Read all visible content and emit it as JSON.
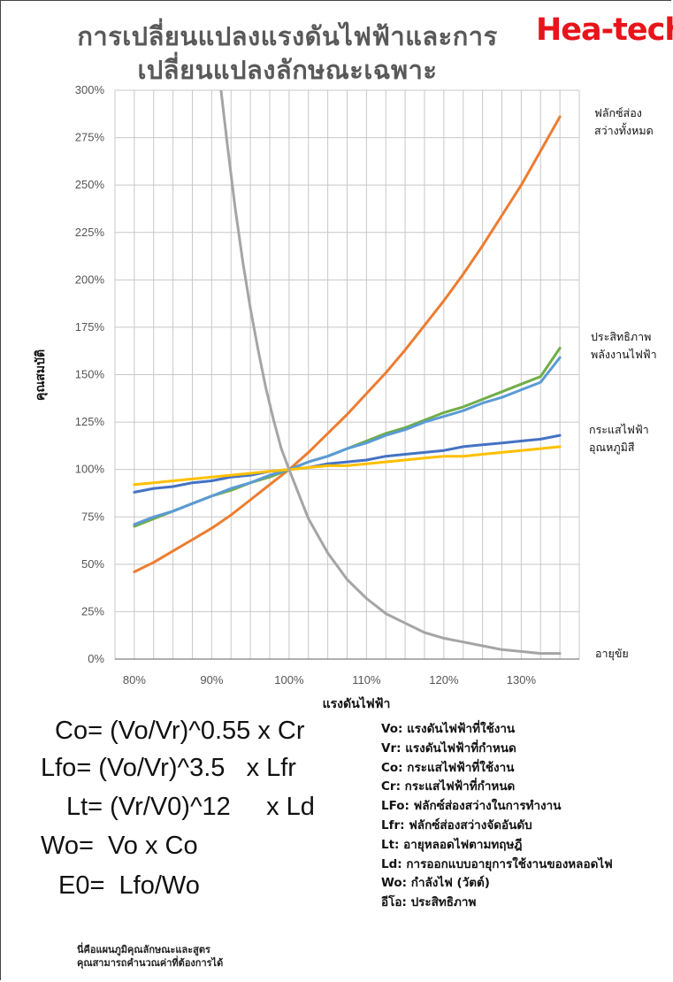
{
  "title_line1": "การเปลี่ยนแปลงแรงดันไฟฟ้าและการ",
  "title_line2": "เปลี่ยนแปลงลักษณะเฉพาะ",
  "brand": "Hea-tech",
  "colors": {
    "brand": "#e8141b",
    "grid": "#c8c8c8",
    "axis": "#7f7f7f"
  },
  "chart_data": {
    "type": "line",
    "xlabel": "แรงดันไฟฟ้า",
    "ylabel": "คุณสมบัติ",
    "xlim": [
      77.5,
      137.5
    ],
    "ylim": [
      0,
      300
    ],
    "x_ticks": [
      80,
      90,
      100,
      110,
      120,
      130
    ],
    "x_tick_labels": [
      "80%",
      "90%",
      "100%",
      "110%",
      "120%",
      "130%"
    ],
    "y_ticks": [
      0,
      25,
      50,
      75,
      100,
      125,
      150,
      175,
      200,
      225,
      250,
      275,
      300
    ],
    "y_tick_labels": [
      "0%",
      "25%",
      "50%",
      "75%",
      "100%",
      "125%",
      "150%",
      "175%",
      "200%",
      "225%",
      "250%",
      "275%",
      "300%"
    ],
    "grid": true,
    "x": [
      80,
      82.5,
      85,
      87.5,
      90,
      92.5,
      95,
      97.5,
      100,
      102.5,
      105,
      107.5,
      110,
      112.5,
      115,
      117.5,
      120,
      122.5,
      125,
      127.5,
      130,
      132.5,
      135
    ],
    "series": [
      {
        "key": "flux",
        "color": "#ed7d31",
        "values": [
          46,
          51,
          57,
          63,
          69,
          76,
          84,
          92,
          100,
          109,
          119,
          129,
          140,
          151,
          163,
          176,
          189,
          203,
          218,
          234,
          250,
          268,
          286
        ]
      },
      {
        "key": "efficiency",
        "color": "#70ad47",
        "values": [
          70,
          74,
          78,
          82,
          86,
          89,
          93,
          96,
          100,
          104,
          107,
          111,
          115,
          119,
          122,
          126,
          130,
          133,
          137,
          141,
          145,
          149,
          164
        ]
      },
      {
        "key": "power",
        "color": "#5b9bd5",
        "values": [
          71,
          75,
          78,
          82,
          86,
          90,
          93,
          97,
          100,
          104,
          107,
          111,
          114,
          118,
          121,
          125,
          128,
          131,
          135,
          138,
          142,
          146,
          159
        ]
      },
      {
        "key": "current",
        "color": "#4472c4",
        "values": [
          88,
          90,
          91,
          93,
          94,
          96,
          97,
          99,
          100,
          101,
          103,
          104,
          105,
          107,
          108,
          109,
          110,
          112,
          113,
          114,
          115,
          116,
          118
        ]
      },
      {
        "key": "color_temp",
        "color": "#ffc000",
        "values": [
          92,
          93,
          94,
          95,
          96,
          97,
          98,
          99,
          100,
          101,
          102,
          102,
          103,
          104,
          105,
          106,
          107,
          107,
          108,
          109,
          110,
          111,
          112
        ]
      },
      {
        "key": "life",
        "color": "#a5a5a5",
        "x_values": [
          91.2,
          92,
          93,
          94,
          95,
          96,
          97,
          98,
          99,
          100,
          102.5,
          105,
          107.5,
          110,
          112.5,
          115,
          117.5,
          120,
          122.5,
          125,
          127.5,
          130,
          132.5,
          135
        ],
        "values": [
          300,
          272,
          239,
          210,
          185,
          163,
          143,
          126,
          111,
          100,
          74,
          56,
          42,
          32,
          24,
          19,
          14,
          11,
          9,
          7,
          5,
          4,
          3,
          3
        ]
      }
    ],
    "series_labels": [
      {
        "lines": [
          "ฟลักซ์ส่อง",
          "สว่างทั้งหมด"
        ]
      },
      {
        "lines": [
          "ประสิทธิภาพ",
          "พลังงานไฟฟ้า"
        ]
      },
      {
        "lines": [
          "กระแสไฟฟ้า",
          "อุณหภูมิสี"
        ]
      },
      {
        "lines": [
          "อายุขัย"
        ]
      }
    ]
  },
  "formulas": [
    "Co= (Vo/Vr)^0.55 x Cr",
    "Lfo= (Vo/Vr)^3.5   x Lfr",
    "Lt= (Vr/V0)^12     x Ld",
    "Wo=  Vo x Co",
    "E0=  Lfo/Wo"
  ],
  "legend": [
    "Vo: แรงดันไฟฟ้าที่ใช้งาน",
    "Vr: แรงดันไฟฟ้าที่กำหนด",
    "Co: กระแสไฟฟ้าที่ใช้งาน",
    "Cr: กระแสไฟฟ้าที่กำหนด",
    "LFo: ฟลักซ์ส่องสว่างในการทำงาน",
    "Lfr: ฟลักซ์ส่องสว่างจัดอันดับ",
    "Lt: อายุหลอดไฟตามทฤษฎี",
    "Ld: การออกแบบอายุการใช้งานของหลอดไฟ",
    "Wo: กำลังไฟ (วัตต์)",
    "อีโอ: ประสิทธิภาพ"
  ],
  "notes": [
    "นี่คือแผนภูมิคุณลักษณะและสูตร",
    "คุณสามารถคำนวณค่าที่ต้องการได้"
  ]
}
